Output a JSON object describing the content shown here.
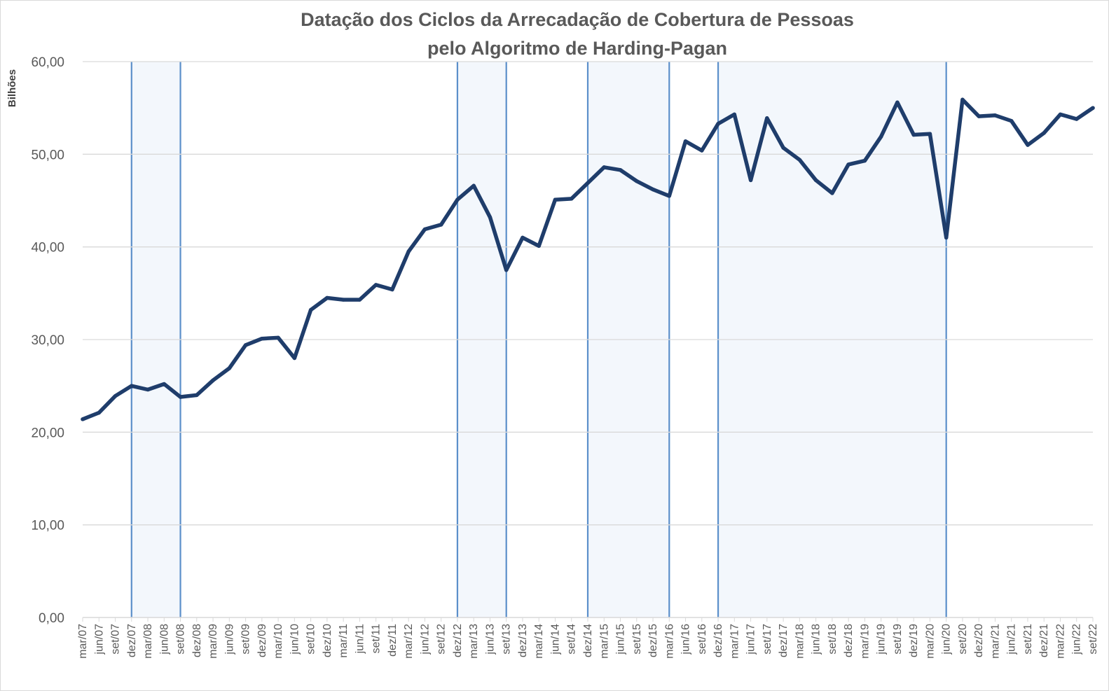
{
  "chart_data": {
    "type": "line",
    "title": [
      "Datação dos Ciclos da Arrecadação de Cobertura de Pessoas",
      "pelo Algoritmo de Harding-Pagan"
    ],
    "xlabel": "",
    "ylabel": "Bilhões",
    "ylim": [
      0,
      60
    ],
    "y_ticks": [
      "0,00",
      "10,00",
      "20,00",
      "30,00",
      "40,00",
      "50,00",
      "60,00"
    ],
    "grid": "horizontal",
    "legend": "none",
    "categories": [
      "mar/07",
      "jun/07",
      "set/07",
      "dez/07",
      "mar/08",
      "jun/08",
      "set/08",
      "dez/08",
      "mar/09",
      "jun/09",
      "set/09",
      "dez/09",
      "mar/10",
      "jun/10",
      "set/10",
      "dez/10",
      "mar/11",
      "jun/11",
      "set/11",
      "dez/11",
      "mar/12",
      "jun/12",
      "set/12",
      "dez/12",
      "mar/13",
      "jun/13",
      "set/13",
      "dez/13",
      "mar/14",
      "jun/14",
      "set/14",
      "dez/14",
      "mar/15",
      "jun/15",
      "set/15",
      "dez/15",
      "mar/16",
      "jun/16",
      "set/16",
      "dez/16",
      "mar/17",
      "jun/17",
      "set/17",
      "dez/17",
      "mar/18",
      "jun/18",
      "set/18",
      "dez/18",
      "mar/19",
      "jun/19",
      "set/19",
      "dez/19",
      "mar/20",
      "jun/20",
      "set/20",
      "dez/20",
      "mar/21",
      "jun/21",
      "set/21",
      "dez/21",
      "mar/22",
      "jun/22",
      "set/22"
    ],
    "series": [
      {
        "values": [
          21.4,
          22.1,
          23.9,
          25.0,
          24.6,
          25.2,
          23.8,
          24.0,
          25.6,
          26.9,
          29.4,
          30.1,
          30.2,
          28.0,
          33.2,
          34.5,
          34.3,
          34.3,
          35.9,
          35.4,
          39.5,
          41.9,
          42.4,
          45.1,
          46.6,
          43.2,
          37.5,
          41.0,
          40.1,
          45.1,
          45.2,
          46.9,
          48.6,
          48.3,
          47.1,
          46.2,
          45.5,
          51.4,
          50.4,
          53.3,
          54.3,
          47.2,
          53.9,
          50.7,
          49.4,
          47.2,
          45.8,
          48.9,
          49.3,
          51.9,
          55.6,
          52.1,
          52.2,
          41.0,
          55.9,
          54.1,
          54.2,
          53.6,
          51.0,
          52.3,
          54.3,
          53.8,
          55.0
        ],
        "color": "#1f3d6b"
      }
    ],
    "recession_bands": [
      {
        "start": "dez/07",
        "end": "set/08"
      },
      {
        "start": "dez/12",
        "end": "set/13"
      },
      {
        "start": "dez/14",
        "end": "mar/16"
      },
      {
        "start": "dez/16",
        "end": "jun/20"
      }
    ],
    "colors": {
      "line": "#1f3d6b",
      "band_fill": "#f3f7fc",
      "band_border": "#5b8fca",
      "grid": "#d9d9d9",
      "axis_text": "#595959"
    }
  }
}
